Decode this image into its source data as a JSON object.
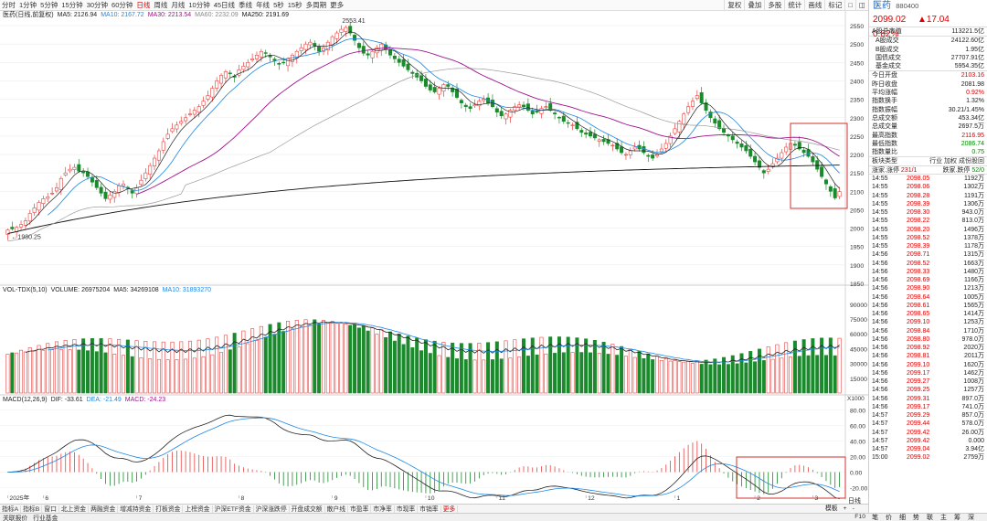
{
  "toolbar": {
    "periods": [
      "分时",
      "1分钟",
      "5分钟",
      "15分钟",
      "30分钟",
      "60分钟",
      "日线",
      "周线",
      "月线",
      "10分钟",
      "45日线",
      "季线",
      "年线",
      "5秒",
      "15秒",
      "多周期",
      "更多"
    ],
    "active": "日线",
    "right": [
      "复权",
      "叠加",
      "多股",
      "统计",
      "画线",
      "标记",
      "□",
      "◫"
    ]
  },
  "legends": {
    "main": {
      "title": "医药(日线,前复权)",
      "items": [
        {
          "label": "MA5: 2126.94",
          "color": "#222222"
        },
        {
          "label": "MA10: 2167.72",
          "color": "#1e88e5"
        },
        {
          "label": "MA30: 2213.54",
          "color": "#a0128c"
        },
        {
          "label": "MA60: 2232.09",
          "color": "#888888"
        },
        {
          "label": "MA250: 2191.69",
          "color": "#111111"
        }
      ]
    },
    "vol": {
      "title": "VOL-TDX(5,10)",
      "items": [
        {
          "label": "VOLUME: 26975204",
          "color": "#222222"
        },
        {
          "label": "MA5: 34269108",
          "color": "#222222"
        },
        {
          "label": "MA10: 31893270",
          "color": "#1e88e5"
        }
      ]
    },
    "macd": {
      "title": "MACD(12,26,9)",
      "items": [
        {
          "label": "DIF: -33.61",
          "color": "#222222"
        },
        {
          "label": "DEA: -21.49",
          "color": "#1e88e5"
        },
        {
          "label": "MACD: -24.23",
          "color": "#a0128c"
        }
      ]
    }
  },
  "annotations": {
    "high": "2553.41",
    "low": "1980.25"
  },
  "axis": {
    "price_ticks": [
      "2550",
      "2500",
      "2450",
      "2400",
      "2350",
      "2300",
      "2250",
      "2200",
      "2150",
      "2100",
      "2050",
      "2000",
      "1950",
      "1900",
      "1850"
    ],
    "vol_ticks": [
      "90000",
      "75000",
      "60000",
      "45000",
      "30000",
      "15000"
    ],
    "vol_unit": "X1000",
    "macd_ticks": [
      "80.00",
      "60.00",
      "40.00",
      "20.00",
      "0.00",
      "-20.00"
    ],
    "date_labels": [
      "2025年",
      "6",
      "7",
      "8",
      "9",
      "10",
      "11",
      "12",
      "1",
      "2",
      "3"
    ]
  },
  "bottom_tabs": [
    "指标A",
    "指标B",
    "窗口",
    "北上资金",
    "两融资金",
    "增减持资金",
    "打板资金",
    "上榜资金",
    "沪深ETF资金",
    "沪深涨跌停",
    "开盘成交额",
    "散户线",
    "市盈率",
    "市净率",
    "市现率",
    "市销率",
    "更多"
  ],
  "bottom_right": [
    "模板",
    "+",
    "-"
  ],
  "bottom_right_label": "日线",
  "status_bar": [
    "关联报价",
    "行业基金"
  ],
  "status_right": [
    "F10"
  ],
  "quote": {
    "name": "医药",
    "code": "880400",
    "price": "2099.02",
    "change": "▲17.04",
    "pct": "0.82%",
    "group1": [
      [
        "A股总市值",
        "113221.5亿"
      ]
    ],
    "group2": [
      [
        "A股成交",
        "24122.60亿"
      ],
      [
        "B股成交",
        "1.95亿"
      ],
      [
        "国债成交",
        "27707.91亿"
      ],
      [
        "基金成交",
        "5954.35亿"
      ]
    ],
    "group3": [
      [
        "今日开盘",
        "2103.16"
      ],
      [
        "昨日收盘",
        "2081.98"
      ],
      [
        "平均涨幅",
        "0.92%"
      ],
      [
        "指数换手",
        "1.32%"
      ],
      [
        "指数振幅",
        "30.21/1.45%"
      ],
      [
        "总成交额",
        "453.34亿"
      ],
      [
        "总成交量",
        "2697.5万"
      ],
      [
        "最高指数",
        "2116.95"
      ],
      [
        "最低指数",
        "2086.74"
      ],
      [
        "指数量比",
        "0.75"
      ]
    ],
    "plate": {
      "k": "板块类型",
      "v": "行业 加权 成份股回"
    },
    "updown": {
      "k": "涨家.涨停",
      "v": "231/1",
      "k2": "跌家.跌停",
      "v2": "52/0"
    }
  },
  "ticks": [
    [
      "14:55",
      "2098.05",
      "1192万"
    ],
    [
      "14:55",
      "2098.06",
      "1302万"
    ],
    [
      "14:55",
      "2098.28",
      "1191万"
    ],
    [
      "14:55",
      "2098.39",
      "1306万"
    ],
    [
      "14:55",
      "2098.30",
      "943.0万"
    ],
    [
      "14:55",
      "2098.22",
      "813.0万"
    ],
    [
      "14:55",
      "2098.20",
      "1496万"
    ],
    [
      "14:55",
      "2098.52",
      "1378万"
    ],
    [
      "14:55",
      "2098.39",
      "1178万"
    ],
    [
      "14:56",
      "2098.71",
      "1315万"
    ],
    [
      "14:56",
      "2098.52",
      "1663万"
    ],
    [
      "14:56",
      "2098.33",
      "1480万"
    ],
    [
      "14:56",
      "2098.69",
      "1166万"
    ],
    [
      "14:56",
      "2098.90",
      "1213万"
    ],
    [
      "14:56",
      "2098.64",
      "1005万"
    ],
    [
      "14:56",
      "2098.61",
      "1565万"
    ],
    [
      "14:56",
      "2098.65",
      "1414万"
    ],
    [
      "14:56",
      "2099.10",
      "1253万"
    ],
    [
      "14:56",
      "2098.84",
      "1710万"
    ],
    [
      "14:56",
      "2098.80",
      "978.0万"
    ],
    [
      "14:56",
      "2098.92",
      "2020万"
    ],
    [
      "14:56",
      "2098.81",
      "2011万"
    ],
    [
      "14:56",
      "2099.10",
      "1620万"
    ],
    [
      "14:56",
      "2099.17",
      "1462万"
    ],
    [
      "14:56",
      "2099.27",
      "1008万"
    ],
    [
      "14:56",
      "2099.25",
      "1257万"
    ],
    [
      "14:56",
      "2099.31",
      "897.0万"
    ],
    [
      "14:56",
      "2099.17",
      "741.0万"
    ],
    [
      "14:57",
      "2099.29",
      "857.0万"
    ],
    [
      "14:57",
      "2099.44",
      "578.0万"
    ],
    [
      "14:57",
      "2099.42",
      "26.00万"
    ],
    [
      "14:57",
      "2099.42",
      "0.000"
    ],
    [
      "14:57",
      "2099.04",
      "3.94亿"
    ],
    [
      "15:00",
      "2099.02",
      "2759万"
    ]
  ],
  "right_bottom_tabs": [
    "笔",
    "价",
    "细",
    "势",
    "联",
    "主",
    "筹",
    "深"
  ],
  "colors": {
    "up": "#e8423f",
    "down": "#1b8a2c",
    "ma5": "#222222",
    "ma10": "#1e88e5",
    "ma30": "#a0128c",
    "ma60": "#999999",
    "ma250": "#111111",
    "highlight": "#d32f2f"
  },
  "chart_data": {
    "type": "candlestick",
    "panes": [
      "price",
      "volume",
      "macd"
    ],
    "y_range": [
      1850,
      2570
    ],
    "volume_range": [
      0,
      100000
    ],
    "macd_range": [
      -30,
      90
    ],
    "months": [
      {
        "label": "2025年",
        "from": 0
      },
      {
        "label": "6",
        "from": 8
      },
      {
        "label": "7",
        "from": 29
      },
      {
        "label": "8",
        "from": 52
      },
      {
        "label": "9",
        "from": 73
      },
      {
        "label": "10",
        "from": 94
      },
      {
        "label": "11",
        "from": 110
      },
      {
        "label": "12",
        "from": 130
      },
      {
        "label": "1",
        "from": 150
      },
      {
        "label": "2",
        "from": 168
      },
      {
        "label": "3",
        "from": 181
      }
    ],
    "closes": [
      1995,
      1998,
      2002,
      2010,
      2020,
      2040,
      2055,
      2070,
      2080,
      2085,
      2095,
      2110,
      2135,
      2150,
      2160,
      2165,
      2155,
      2150,
      2140,
      2125,
      2110,
      2095,
      2080,
      2090,
      2100,
      2115,
      2120,
      2108,
      2095,
      2110,
      2130,
      2150,
      2170,
      2190,
      2210,
      2235,
      2255,
      2270,
      2280,
      2290,
      2300,
      2310,
      2320,
      2330,
      2345,
      2360,
      2380,
      2400,
      2415,
      2425,
      2420,
      2410,
      2430,
      2440,
      2450,
      2460,
      2470,
      2480,
      2475,
      2465,
      2455,
      2445,
      2450,
      2460,
      2470,
      2480,
      2490,
      2500,
      2505,
      2495,
      2480,
      2490,
      2505,
      2520,
      2530,
      2540,
      2545,
      2530,
      2510,
      2490,
      2475,
      2470,
      2480,
      2490,
      2500,
      2485,
      2470,
      2460,
      2450,
      2440,
      2430,
      2420,
      2410,
      2400,
      2385,
      2375,
      2370,
      2380,
      2390,
      2385,
      2370,
      2355,
      2340,
      2330,
      2325,
      2335,
      2345,
      2350,
      2340,
      2330,
      2315,
      2305,
      2310,
      2320,
      2330,
      2335,
      2330,
      2320,
      2310,
      2315,
      2325,
      2330,
      2320,
      2310,
      2300,
      2290,
      2285,
      2280,
      2270,
      2260,
      2255,
      2250,
      2245,
      2240,
      2235,
      2230,
      2225,
      2215,
      2205,
      2200,
      2210,
      2220,
      2215,
      2205,
      2195,
      2190,
      2200,
      2215,
      2230,
      2250,
      2270,
      2290,
      2310,
      2330,
      2345,
      2360,
      2340,
      2320,
      2300,
      2285,
      2270,
      2260,
      2250,
      2240,
      2230,
      2220,
      2210,
      2195,
      2180,
      2165,
      2150,
      2160,
      2175,
      2190,
      2205,
      2220,
      2230,
      2225,
      2215,
      2205,
      2195,
      2180,
      2160,
      2140,
      2120,
      2100,
      2082,
      2099
    ]
  }
}
